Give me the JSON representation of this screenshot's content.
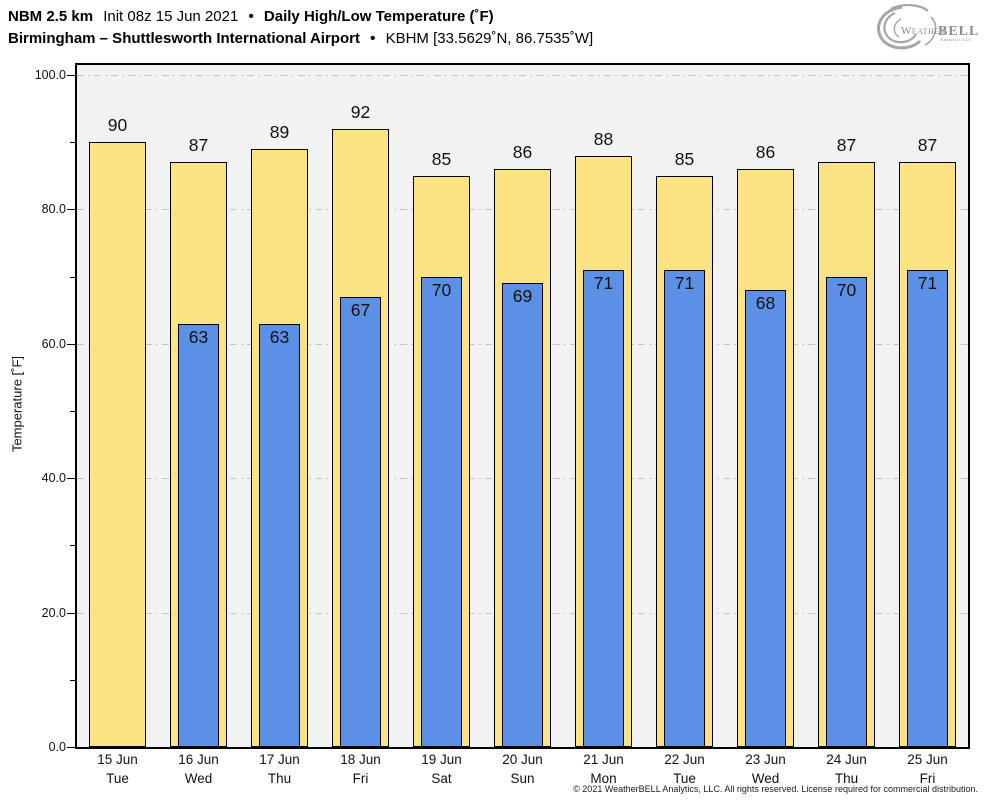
{
  "header": {
    "title_model": "NBM 2.5 km",
    "title_init": "Init 08z 15 Jun 2021",
    "separator": "•",
    "title_product": "Daily High/Low Temperature (˚F)",
    "subtitle_location": "Birmingham – Shuttlesworth International Airport",
    "subtitle_station": "KBHM [33.5629˚N, 86.7535˚W]"
  },
  "logo": {
    "brand_prefix": "Weather",
    "brand_suffix": "BELL",
    "brand_sub": "Analytics LLC"
  },
  "chart_data": {
    "type": "bar",
    "title": "Daily High/Low Temperature (˚F)",
    "ylabel": "Temperature [˚F]",
    "ylim": [
      0,
      101.5
    ],
    "yticks": [
      0,
      20,
      40,
      60,
      80,
      100
    ],
    "ytick_labels": [
      "0.0",
      "20.0",
      "40.0",
      "60.0",
      "80.0",
      "100.0"
    ],
    "yticks_minor": [
      10,
      30,
      50,
      70,
      90
    ],
    "grid": "horizontal dash-dot lines at major ticks, plot background light gray",
    "legend_position": "none",
    "categories": [
      {
        "date": "15 Jun",
        "day": "Tue"
      },
      {
        "date": "16 Jun",
        "day": "Wed"
      },
      {
        "date": "17 Jun",
        "day": "Thu"
      },
      {
        "date": "18 Jun",
        "day": "Fri"
      },
      {
        "date": "19 Jun",
        "day": "Sat"
      },
      {
        "date": "20 Jun",
        "day": "Sun"
      },
      {
        "date": "21 Jun",
        "day": "Mon"
      },
      {
        "date": "22 Jun",
        "day": "Tue"
      },
      {
        "date": "23 Jun",
        "day": "Wed"
      },
      {
        "date": "24 Jun",
        "day": "Thu"
      },
      {
        "date": "25 Jun",
        "day": "Fri"
      }
    ],
    "series": [
      {
        "name": "High",
        "color": "#fbe283",
        "values": [
          90,
          87,
          89,
          92,
          85,
          86,
          88,
          85,
          86,
          87,
          87
        ]
      },
      {
        "name": "Low",
        "color": "#5c8fe6",
        "values": [
          null,
          63,
          63,
          67,
          70,
          69,
          71,
          71,
          68,
          70,
          71
        ]
      }
    ],
    "bar_outline_color": "#000000"
  },
  "footer": {
    "copyright": "© 2021 WeatherBELL Analytics, LLC. All rights reserved. License required for commercial distribution."
  }
}
